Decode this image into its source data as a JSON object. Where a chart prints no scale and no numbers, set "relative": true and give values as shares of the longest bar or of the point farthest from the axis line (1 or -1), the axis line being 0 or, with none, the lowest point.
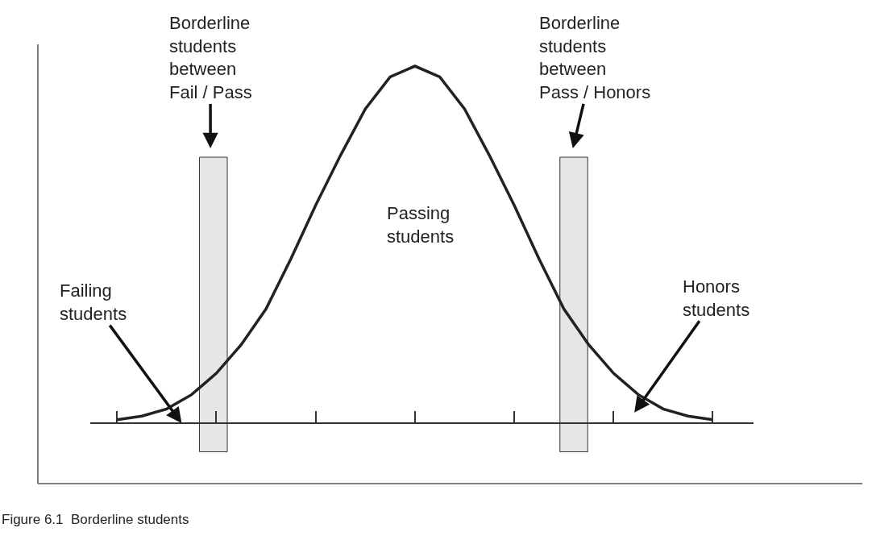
{
  "chart_data": {
    "type": "line",
    "relative": true,
    "legend": false,
    "categories": [
      null,
      null,
      null,
      null,
      null,
      null,
      null,
      null,
      null,
      null,
      null,
      null,
      null,
      null,
      null,
      null,
      null,
      null,
      null,
      null,
      null,
      null,
      null,
      null,
      null
    ],
    "series": [
      {
        "color": "#222222",
        "values": [
          0.01,
          0.02,
          0.04,
          0.08,
          0.14,
          0.22,
          0.32,
          0.46,
          0.61,
          0.75,
          0.88,
          0.97,
          1,
          0.97,
          0.88,
          0.75,
          0.61,
          0.46,
          0.32,
          0.22,
          0.14,
          0.08,
          0.04,
          0.02,
          0.01
        ]
      }
    ],
    "annotations": [
      "Borderline\nstudents\nbetween\nFail / Pass",
      "Borderline\nstudents\nbetween\nPass / Honors",
      "Failing\nstudents",
      "Honors\nstudents",
      "Passing\nstudents",
      "Figure 6.1  Borderline students"
    ]
  }
}
